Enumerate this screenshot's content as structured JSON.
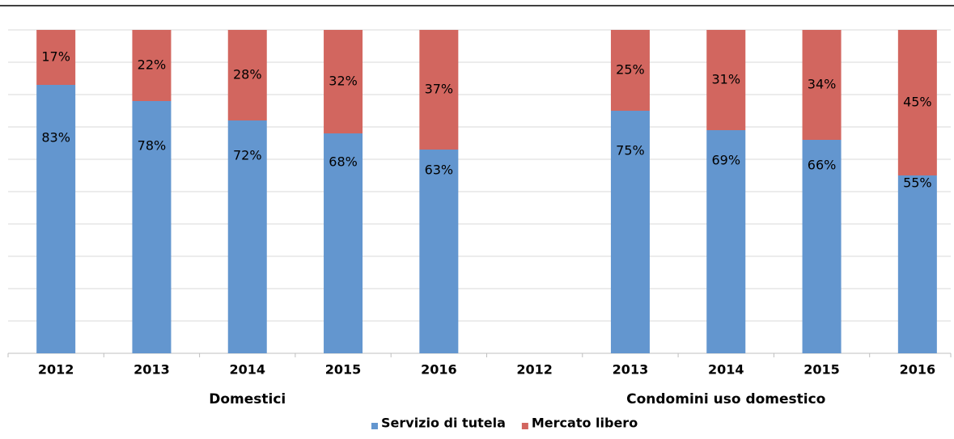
{
  "chart_data": {
    "type": "stacked_bar",
    "categories": [
      "2012",
      "2013",
      "2014",
      "2015",
      "2016",
      "2012",
      "2013",
      "2014",
      "2015",
      "2016"
    ],
    "groups": [
      {
        "label": "Domestici",
        "start": 0,
        "end": 4
      },
      {
        "label": "Condomini uso domestico",
        "start": 5,
        "end": 9
      }
    ],
    "series": [
      {
        "name": "Servizio di tutela",
        "color": "#6396cf",
        "values": [
          83,
          78,
          72,
          68,
          63,
          null,
          75,
          69,
          66,
          55
        ],
        "value_labels": [
          "83%",
          "78%",
          "72%",
          "68%",
          "63%",
          null,
          "75%",
          "69%",
          "66%",
          "55%"
        ]
      },
      {
        "name": "Mercato libero",
        "color": "#d2665f",
        "values": [
          17,
          22,
          28,
          32,
          37,
          null,
          25,
          31,
          34,
          45
        ],
        "value_labels": [
          "17%",
          "22%",
          "28%",
          "32%",
          "37%",
          null,
          "25%",
          "31%",
          "34%",
          "45%"
        ]
      }
    ],
    "ylim": [
      0,
      100
    ],
    "yticks": [
      0,
      10,
      20,
      30,
      40,
      50,
      60,
      70,
      80,
      90,
      100
    ],
    "grid": true
  }
}
